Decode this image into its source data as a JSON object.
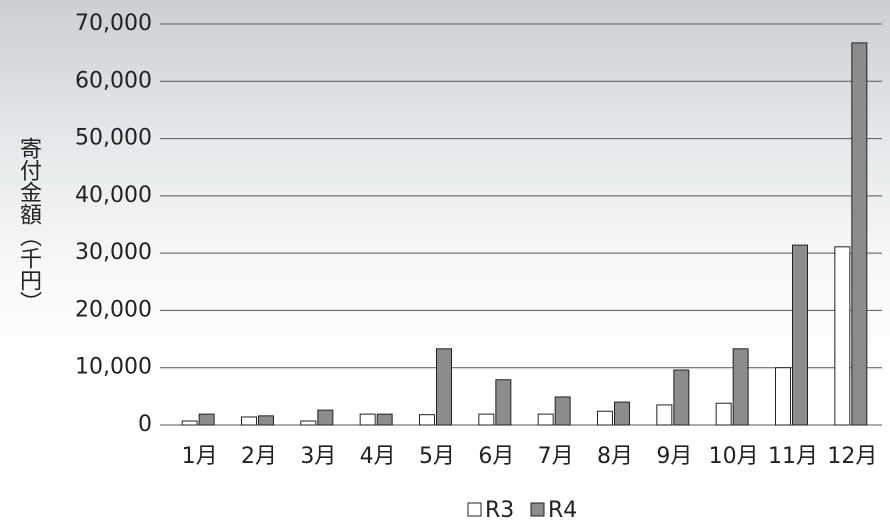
{
  "chart_data": {
    "type": "bar",
    "y_label": "寄付金額（千円）",
    "categories": [
      "1月",
      "2月",
      "3月",
      "4月",
      "5月",
      "6月",
      "7月",
      "8月",
      "9月",
      "10月",
      "11月",
      "12月"
    ],
    "series": [
      {
        "name": "R3",
        "color": "#ffffff",
        "values": [
          700,
          1400,
          700,
          1900,
          1800,
          1900,
          1900,
          2400,
          3500,
          3800,
          10000,
          31100
        ]
      },
      {
        "name": "R4",
        "color": "#8c8c8c",
        "values": [
          1900,
          1600,
          2600,
          1900,
          13300,
          7900,
          4900,
          4000,
          9600,
          13300,
          31400,
          66700
        ]
      }
    ],
    "ylim": [
      0,
      70000
    ],
    "yticks": [
      0,
      {
        "value": 10000,
        "label": "10,000"
      },
      {
        "value": 20000,
        "label": "20,000"
      },
      {
        "value": 30000,
        "label": "30,000"
      },
      {
        "value": 40000,
        "label": "40,000"
      },
      {
        "value": 50000,
        "label": "50,000"
      },
      {
        "value": 60000,
        "label": "60,000"
      },
      {
        "value": 70000,
        "label": "70,000"
      }
    ],
    "grid": true
  }
}
